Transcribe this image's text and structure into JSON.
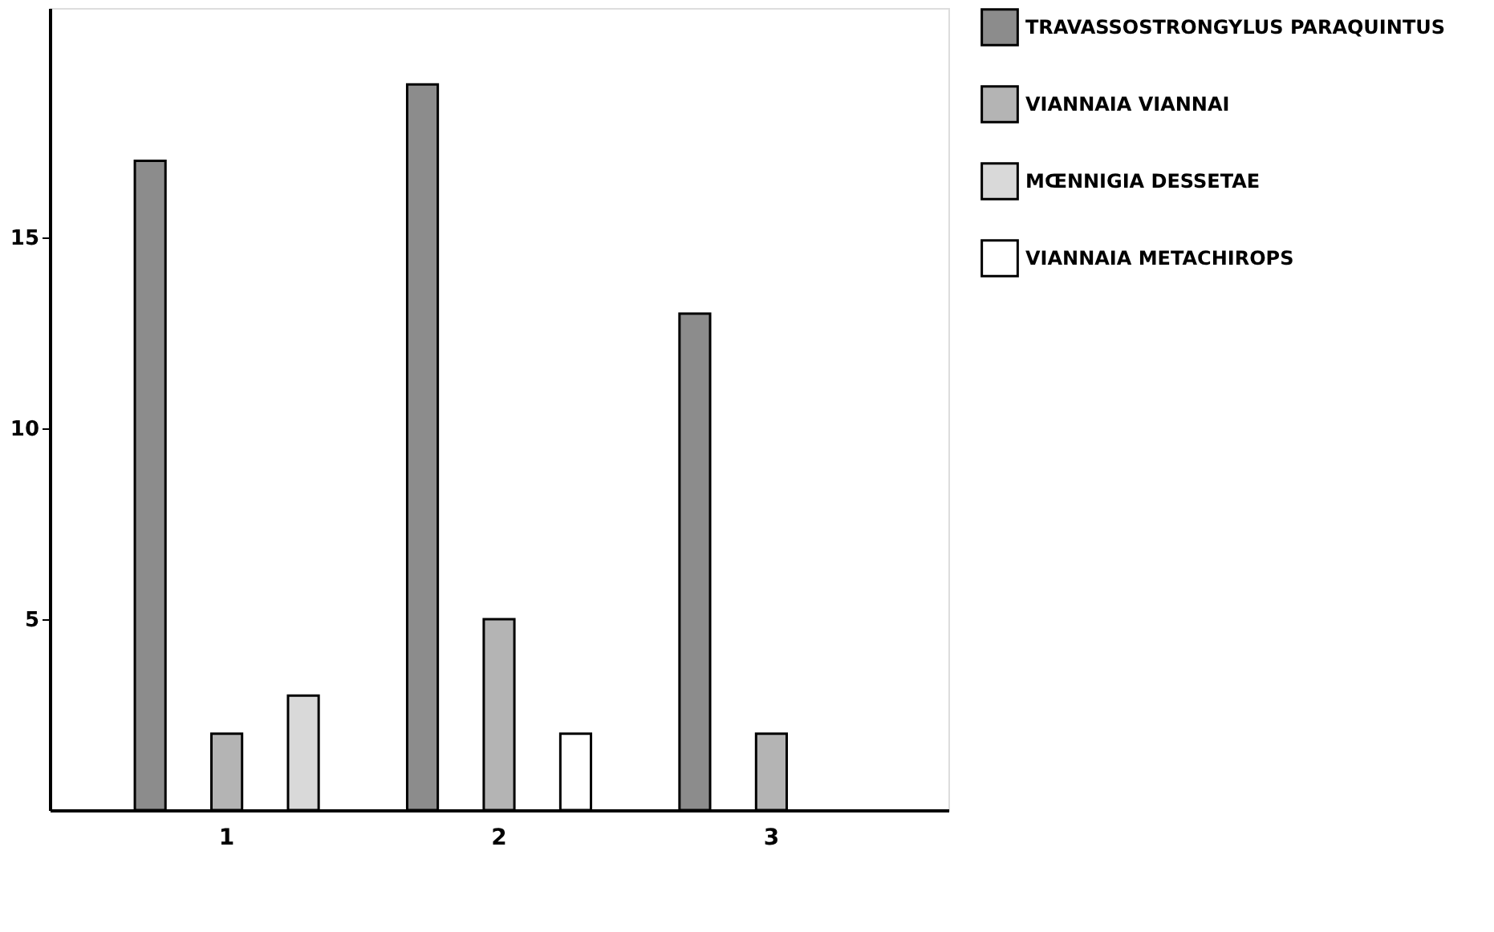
{
  "chart_data": {
    "type": "bar",
    "categories": [
      "1",
      "2",
      "3"
    ],
    "series": [
      {
        "name": "TRAVASSOSTRONGYLUS PARAQUINTUS",
        "color": "#8c8c8c",
        "values": [
          17,
          19,
          13
        ]
      },
      {
        "name": "VIANNAIA VIANNAI",
        "color": "#b4b4b4",
        "values": [
          2,
          5,
          2
        ]
      },
      {
        "name": "MŒNNIGIA DESSETAE",
        "color": "#d9d9d9",
        "values": [
          3,
          null,
          null
        ]
      },
      {
        "name": "VIANNAIA METACHIROPS",
        "color": "#ffffff",
        "values": [
          null,
          2,
          null
        ]
      }
    ],
    "ylim": [
      0,
      21
    ],
    "yticks": [
      5,
      10,
      15
    ],
    "grid": false,
    "legend": "top right"
  }
}
